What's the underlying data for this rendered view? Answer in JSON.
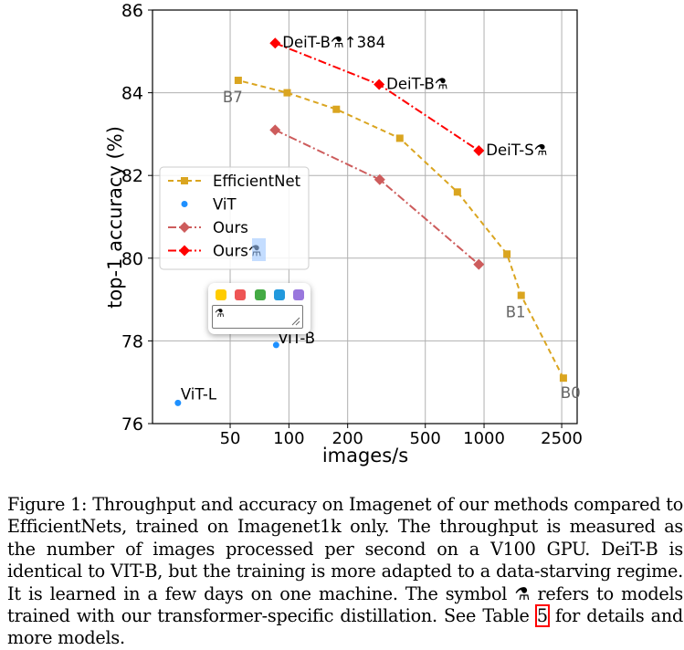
{
  "chart_data": {
    "type": "line",
    "xscale": "log",
    "xlabel": "images/s",
    "ylabel": "top-1 accuracy (%)",
    "xlim": [
      20,
      3000
    ],
    "ylim": [
      76,
      86
    ],
    "xticks": [
      50,
      100,
      200,
      500,
      1000,
      2500
    ],
    "xtick_labels": [
      "50",
      "100",
      "200",
      "500",
      "1000",
      "2500"
    ],
    "yticks": [
      76,
      78,
      80,
      82,
      84,
      86
    ],
    "ytick_labels": [
      "76",
      "78",
      "80",
      "82",
      "84",
      "86"
    ],
    "grid": true,
    "legend_position": "center-left",
    "series": [
      {
        "name": "EfficientNet",
        "style": "dashed",
        "marker": "square",
        "color": "#DAA520",
        "x": [
          2550,
          1550,
          1310,
          730,
          370,
          175,
          98,
          55
        ],
        "y": [
          77.1,
          79.1,
          80.1,
          81.6,
          82.9,
          83.6,
          84.0,
          84.3
        ],
        "point_labels": [
          {
            "x": 2550,
            "y": 77.1,
            "label": "B0"
          },
          {
            "x": 1550,
            "y": 79.1,
            "label": "B1"
          },
          {
            "x": 55,
            "y": 84.3,
            "label": "B7"
          }
        ]
      },
      {
        "name": "ViT",
        "style": "none",
        "marker": "circle",
        "color": "#1E90FF",
        "x": [
          27,
          86
        ],
        "y": [
          76.5,
          77.9
        ],
        "point_labels": [
          {
            "x": 27,
            "y": 76.5,
            "label": "ViT-L"
          },
          {
            "x": 86,
            "y": 77.9,
            "label": "ViT-B"
          }
        ]
      },
      {
        "name": "Ours",
        "style": "dashdot",
        "marker": "diamond",
        "color": "#CD5C5C",
        "x": [
          85,
          292,
          940
        ],
        "y": [
          83.1,
          81.9,
          79.85
        ]
      },
      {
        "name": "Ours⚗",
        "style": "dashdot",
        "marker": "diamond",
        "color": "#FF0000",
        "x": [
          85,
          290,
          940
        ],
        "y": [
          85.2,
          84.2,
          82.6
        ],
        "point_labels": [
          {
            "x": 85,
            "y": 85.2,
            "label": "DeiT-B⚗↑384"
          },
          {
            "x": 290,
            "y": 84.2,
            "label": "DeiT-B⚗"
          },
          {
            "x": 940,
            "y": 82.6,
            "label": "DeiT-S⚗"
          }
        ]
      }
    ]
  },
  "caption": {
    "part1": "Figure 1: Throughput and accuracy on Imagenet of our methods compared to EfficientNets, trained on Imagenet1k only. The throughput is measured as the number of images processed per second on a V100 GPU. DeiT-B is identical to VIT-B, but the training is more adapted to a data-starving regime. It is learned in a few days on one machine. The symbol ⚗ refers to models trained with our transformer-specific distillation. See Table ",
    "table_ref": "5",
    "part2": " for details and more models."
  },
  "annotation_popup": {
    "colors": [
      "#FFCC00",
      "#EE5555",
      "#44AA44",
      "#2299DD",
      "#9977DD"
    ],
    "note_text": "⚗"
  }
}
